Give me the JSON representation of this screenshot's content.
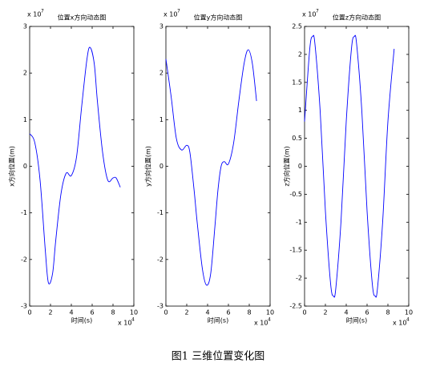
{
  "chart_data": [
    {
      "type": "line",
      "title": "位置x方向动态图",
      "xlabel": "时间(s)",
      "ylabel": "x方向位置(m)",
      "x_offset_label": "x 10",
      "x_offset_exponent": "4",
      "y_offset_label": "x 10",
      "y_offset_exponent": "7",
      "xlim": [
        0,
        10
      ],
      "xticks": [
        0,
        2,
        4,
        6,
        8,
        10
      ],
      "ylim": [
        -3,
        3
      ],
      "yticks": [
        3,
        2,
        1,
        0,
        -1,
        -2,
        -3
      ],
      "x": [
        0,
        0.5,
        1,
        1.5,
        1.8,
        2.2,
        2.5,
        3,
        3.5,
        4,
        4.5,
        5,
        5.5,
        5.8,
        6.2,
        6.5,
        7,
        7.5,
        8,
        8.3,
        8.7
      ],
      "series": [
        {
          "name": "x",
          "color": "#0000ff",
          "values": [
            0.7,
            0.5,
            -0.3,
            -1.8,
            -2.5,
            -2.3,
            -1.6,
            -0.6,
            -0.15,
            -0.2,
            0.2,
            1.3,
            2.3,
            2.55,
            2.2,
            1.4,
            0.3,
            -0.3,
            -0.25,
            -0.25,
            -0.45
          ]
        }
      ]
    },
    {
      "type": "line",
      "title": "位置y方向动态图",
      "xlabel": "时间(s)",
      "ylabel": "y方向位置(m)",
      "x_offset_label": "x 10",
      "x_offset_exponent": "4",
      "y_offset_label": "x 10",
      "y_offset_exponent": "7",
      "xlim": [
        0,
        10
      ],
      "xticks": [
        0,
        2,
        4,
        6,
        8,
        10
      ],
      "ylim": [
        -3,
        3
      ],
      "yticks": [
        3,
        2,
        1,
        0,
        -1,
        -2,
        -3
      ],
      "x": [
        0,
        0.5,
        1,
        1.5,
        2,
        2.3,
        2.7,
        3,
        3.5,
        3.9,
        4.3,
        4.7,
        5,
        5.3,
        5.6,
        6,
        6.5,
        7,
        7.5,
        7.9,
        8.3,
        8.7
      ],
      "series": [
        {
          "name": "y",
          "color": "#0000ff",
          "values": [
            2.3,
            1.5,
            0.6,
            0.35,
            0.45,
            0.3,
            -0.5,
            -1.2,
            -2.2,
            -2.55,
            -2.3,
            -1.3,
            -0.5,
            0.0,
            0.1,
            0.05,
            0.5,
            1.4,
            2.2,
            2.5,
            2.2,
            1.4
          ]
        }
      ]
    },
    {
      "type": "line",
      "title": "位置z方向动态图",
      "xlabel": "时间(s)",
      "ylabel": "z方向位置(m)",
      "x_offset_label": "x 10",
      "x_offset_exponent": "4",
      "y_offset_label": "x 10",
      "y_offset_exponent": "7",
      "xlim": [
        0,
        10
      ],
      "xticks": [
        0,
        2,
        4,
        6,
        8,
        10
      ],
      "ylim": [
        -2.5,
        2.5
      ],
      "yticks": [
        2.5,
        2,
        1.5,
        1,
        0.5,
        0,
        -0.5,
        -1,
        -1.5,
        -2,
        -2.5
      ],
      "x": [
        0,
        0.5,
        0.78,
        1,
        1.5,
        2,
        2.5,
        2.78,
        3,
        3.5,
        4,
        4.5,
        4.78,
        5,
        5.5,
        6,
        6.5,
        6.78,
        7,
        7.5,
        8,
        8.6
      ],
      "series": [
        {
          "name": "z",
          "color": "#0000ff",
          "values": [
            0.8,
            2.1,
            2.32,
            2.18,
            0.98,
            -0.8,
            -2.1,
            -2.32,
            -2.18,
            -0.98,
            0.8,
            2.1,
            2.32,
            2.18,
            0.98,
            -0.8,
            -2.1,
            -2.32,
            -2.18,
            -0.98,
            0.8,
            2.1
          ]
        }
      ]
    }
  ],
  "caption": "图1  三维位置变化图"
}
